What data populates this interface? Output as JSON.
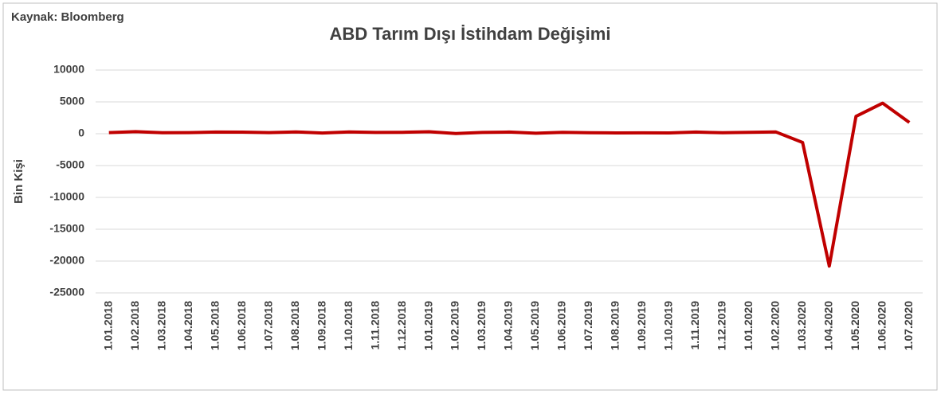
{
  "chart_data": {
    "type": "line",
    "title": "ABD Tarım Dışı İstihdam Değişimi",
    "source": "Kaynak: Bloomberg",
    "y_label": "Bin Kişi",
    "categories": [
      "1.01.2018",
      "1.02.2018",
      "1.03.2018",
      "1.04.2018",
      "1.05.2018",
      "1.06.2018",
      "1.07.2018",
      "1.08.2018",
      "1.09.2018",
      "1.10.2018",
      "1.11.2018",
      "1.12.2018",
      "1.01.2019",
      "1.02.2019",
      "1.03.2019",
      "1.04.2019",
      "1.05.2019",
      "1.06.2019",
      "1.07.2019",
      "1.08.2019",
      "1.09.2019",
      "1.10.2019",
      "1.11.2019",
      "1.12.2019",
      "1.01.2020",
      "1.02.2020",
      "1.03.2020",
      "1.04.2020",
      "1.05.2020",
      "1.06.2020",
      "1.07.2020"
    ],
    "series": [
      {
        "name": "ABD Tarım Dışı İstihdam Değişimi",
        "color": "#c00000",
        "values": [
          176,
          324,
          155,
          175,
          268,
          248,
          178,
          282,
          108,
          277,
          196,
          227,
          312,
          20,
          196,
          263,
          75,
          224,
          164,
          130,
          136,
          128,
          266,
          145,
          225,
          273,
          -1373,
          -20787,
          2725,
          4800,
          1763
        ]
      }
    ],
    "ylim": [
      -25000,
      10000
    ],
    "yticks": [
      10000,
      5000,
      0,
      -5000,
      -10000,
      -15000,
      -20000,
      -25000
    ],
    "grid": true
  }
}
